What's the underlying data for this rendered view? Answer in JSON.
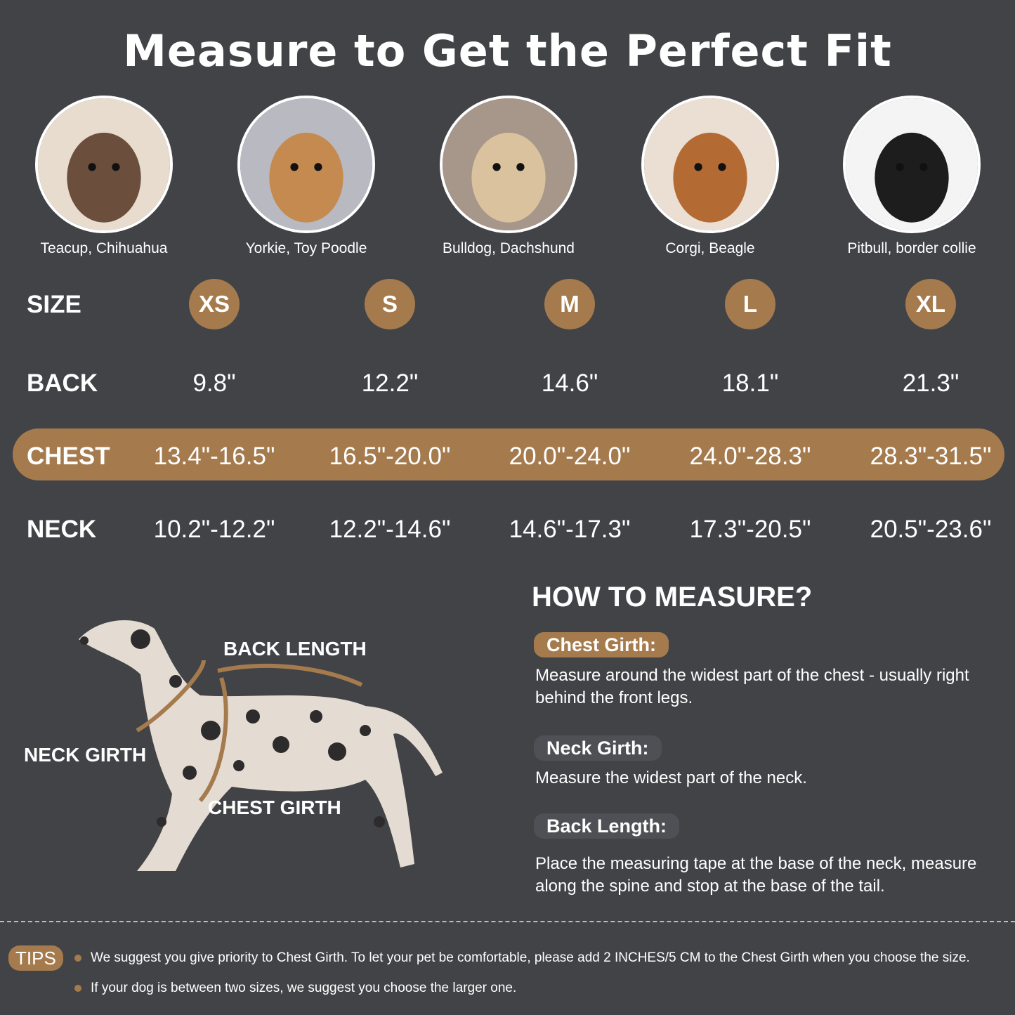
{
  "title": "Measure to Get the Perfect Fit",
  "breeds": [
    "Teacup, Chihuahua",
    "Yorkie, Toy Poodle",
    "Bulldog, Dachshund",
    "Corgi, Beagle",
    "Pitbull, border collie"
  ],
  "table": {
    "size_label": "SIZE",
    "back_label": "BACK",
    "chest_label": "CHEST",
    "neck_label": "NECK",
    "sizes": [
      "XS",
      "S",
      "M",
      "L",
      "XL"
    ],
    "back": [
      "9.8\"",
      "12.2\"",
      "14.6\"",
      "18.1\"",
      "21.3\""
    ],
    "chest": [
      "13.4\"-16.5\"",
      "16.5\"-20.0\"",
      "20.0\"-24.0\"",
      "24.0\"-28.3\"",
      "28.3\"-31.5\""
    ],
    "neck": [
      "10.2\"-12.2\"",
      "12.2\"-14.6\"",
      "14.6\"-17.3\"",
      "17.3\"-20.5\"",
      "20.5\"-23.6\""
    ]
  },
  "diagram": {
    "back_length": "BACK LENGTH",
    "neck_girth": "NECK GIRTH",
    "chest_girth": "CHEST GIRTH"
  },
  "how_to": {
    "heading": "HOW TO MEASURE?",
    "items": [
      {
        "label": "Chest Girth:",
        "text": "Measure around the widest part of the chest - usually right behind the front legs."
      },
      {
        "label": "Neck Girth:",
        "text": "Measure the widest part of the neck."
      },
      {
        "label": "Back Length:",
        "text": "Place the measuring tape at the base of the neck, measure along the spine and stop at the base of the tail."
      }
    ]
  },
  "tips": {
    "label": "TIPS",
    "items": [
      "We suggest you give priority to Chest Girth. To let your pet be comfortable, please add 2 INCHES/5 CM to the Chest Girth when you choose the size.",
      "If your dog is between two sizes, we suggest you choose the larger one."
    ]
  },
  "colors": {
    "background": "#424347",
    "accent": "#a57b4e",
    "pill": "#4f5055"
  }
}
